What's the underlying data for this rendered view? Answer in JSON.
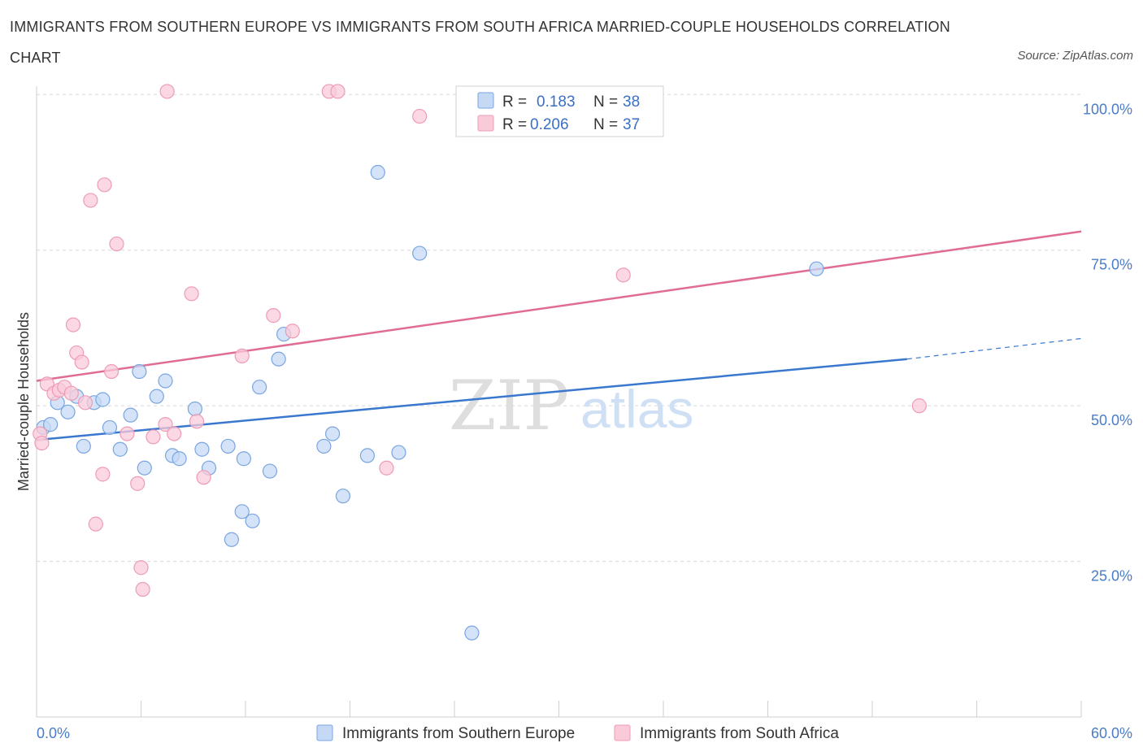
{
  "title": "IMMIGRANTS FROM SOUTHERN EUROPE VS IMMIGRANTS FROM SOUTH AFRICA MARRIED-COUPLE HOUSEHOLDS CORRELATION CHART",
  "source": "Source: ZipAtlas.com",
  "watermark": {
    "zip": "ZIP",
    "atlas": "atlas"
  },
  "colors": {
    "blue_fill": "#c5d9f5",
    "blue_stroke": "#7aa5e0",
    "blue_line": "#3a78d0",
    "pink_fill": "#f9cbd9",
    "pink_stroke": "#ee9cb6",
    "pink_line": "#e06c96",
    "grid": "#d8d8d8",
    "axis_label": "#4a7cc9"
  },
  "legend": {
    "rows": [
      {
        "r_label": "R =",
        "r_value": "0.183",
        "n_label": "N =",
        "n_value": "38"
      },
      {
        "r_label": "R =",
        "r_value": "0.206",
        "n_label": "N =",
        "n_value": "37"
      }
    ]
  },
  "chart_data": {
    "type": "scatter",
    "title": "IMMIGRANTS FROM SOUTHERN EUROPE VS IMMIGRANTS FROM SOUTH AFRICA MARRIED-COUPLE HOUSEHOLDS CORRELATION CHART",
    "xlabel": "",
    "ylabel": "Married-couple Households",
    "xlim": [
      0,
      60
    ],
    "ylim": [
      0,
      105
    ],
    "x_tick_labels": [
      "0.0%",
      "60.0%"
    ],
    "y_ticks": [
      25,
      50,
      75,
      100
    ],
    "y_tick_labels": [
      "25.0%",
      "50.0%",
      "75.0%",
      "100.0%"
    ],
    "grid": true,
    "series": [
      {
        "name": "Immigrants from Southern Europe",
        "color": "blue",
        "R": 0.183,
        "N": 38,
        "trend": {
          "x0": 0,
          "y0": 44.5,
          "x1": 50,
          "y1": 57.5,
          "dash_to_x": 60,
          "dash_to_y": 60.8
        },
        "points": [
          [
            0.4,
            46.5
          ],
          [
            0.8,
            47.0
          ],
          [
            1.2,
            50.5
          ],
          [
            1.8,
            49.0
          ],
          [
            2.3,
            51.5
          ],
          [
            2.7,
            43.5
          ],
          [
            3.3,
            50.5
          ],
          [
            3.8,
            51.0
          ],
          [
            4.2,
            46.5
          ],
          [
            4.8,
            43.0
          ],
          [
            5.4,
            48.5
          ],
          [
            5.9,
            55.5
          ],
          [
            6.2,
            40.0
          ],
          [
            6.9,
            51.5
          ],
          [
            7.4,
            54.0
          ],
          [
            7.8,
            42.0
          ],
          [
            8.2,
            41.5
          ],
          [
            9.1,
            49.5
          ],
          [
            9.5,
            43.0
          ],
          [
            9.9,
            40.0
          ],
          [
            11.0,
            43.5
          ],
          [
            11.2,
            28.5
          ],
          [
            11.8,
            33.0
          ],
          [
            11.9,
            41.5
          ],
          [
            12.4,
            31.5
          ],
          [
            12.8,
            53.0
          ],
          [
            13.4,
            39.5
          ],
          [
            13.9,
            57.5
          ],
          [
            14.2,
            61.5
          ],
          [
            16.5,
            43.5
          ],
          [
            17.0,
            45.5
          ],
          [
            17.6,
            35.5
          ],
          [
            19.0,
            42.0
          ],
          [
            19.6,
            87.5
          ],
          [
            20.8,
            42.5
          ],
          [
            22.0,
            74.5
          ],
          [
            25.0,
            13.5
          ],
          [
            44.8,
            72.0
          ]
        ]
      },
      {
        "name": "Immigrants from South Africa",
        "color": "pink",
        "R": 0.206,
        "N": 37,
        "trend": {
          "x0": 0,
          "y0": 54.0,
          "x1": 60,
          "y1": 78.0
        },
        "points": [
          [
            0.2,
            45.5
          ],
          [
            0.6,
            53.5
          ],
          [
            1.0,
            52.0
          ],
          [
            1.3,
            52.5
          ],
          [
            1.6,
            53.0
          ],
          [
            2.0,
            52.0
          ],
          [
            2.1,
            63.0
          ],
          [
            2.3,
            58.5
          ],
          [
            2.6,
            57.0
          ],
          [
            2.8,
            50.5
          ],
          [
            3.1,
            83.0
          ],
          [
            3.4,
            31.0
          ],
          [
            3.8,
            39.0
          ],
          [
            3.9,
            85.5
          ],
          [
            4.3,
            55.5
          ],
          [
            4.6,
            76.0
          ],
          [
            5.2,
            45.5
          ],
          [
            5.8,
            37.5
          ],
          [
            6.0,
            24.0
          ],
          [
            6.1,
            20.5
          ],
          [
            6.7,
            45.0
          ],
          [
            7.4,
            47.0
          ],
          [
            7.5,
            100.5
          ],
          [
            7.9,
            45.5
          ],
          [
            8.9,
            68.0
          ],
          [
            9.2,
            47.5
          ],
          [
            9.6,
            38.5
          ],
          [
            11.8,
            58.0
          ],
          [
            13.6,
            64.5
          ],
          [
            14.7,
            62.0
          ],
          [
            16.8,
            100.5
          ],
          [
            17.3,
            100.5
          ],
          [
            20.1,
            40.0
          ],
          [
            22.0,
            96.5
          ],
          [
            33.7,
            71.0
          ],
          [
            50.7,
            50.0
          ],
          [
            0.3,
            44.0
          ]
        ]
      }
    ]
  }
}
